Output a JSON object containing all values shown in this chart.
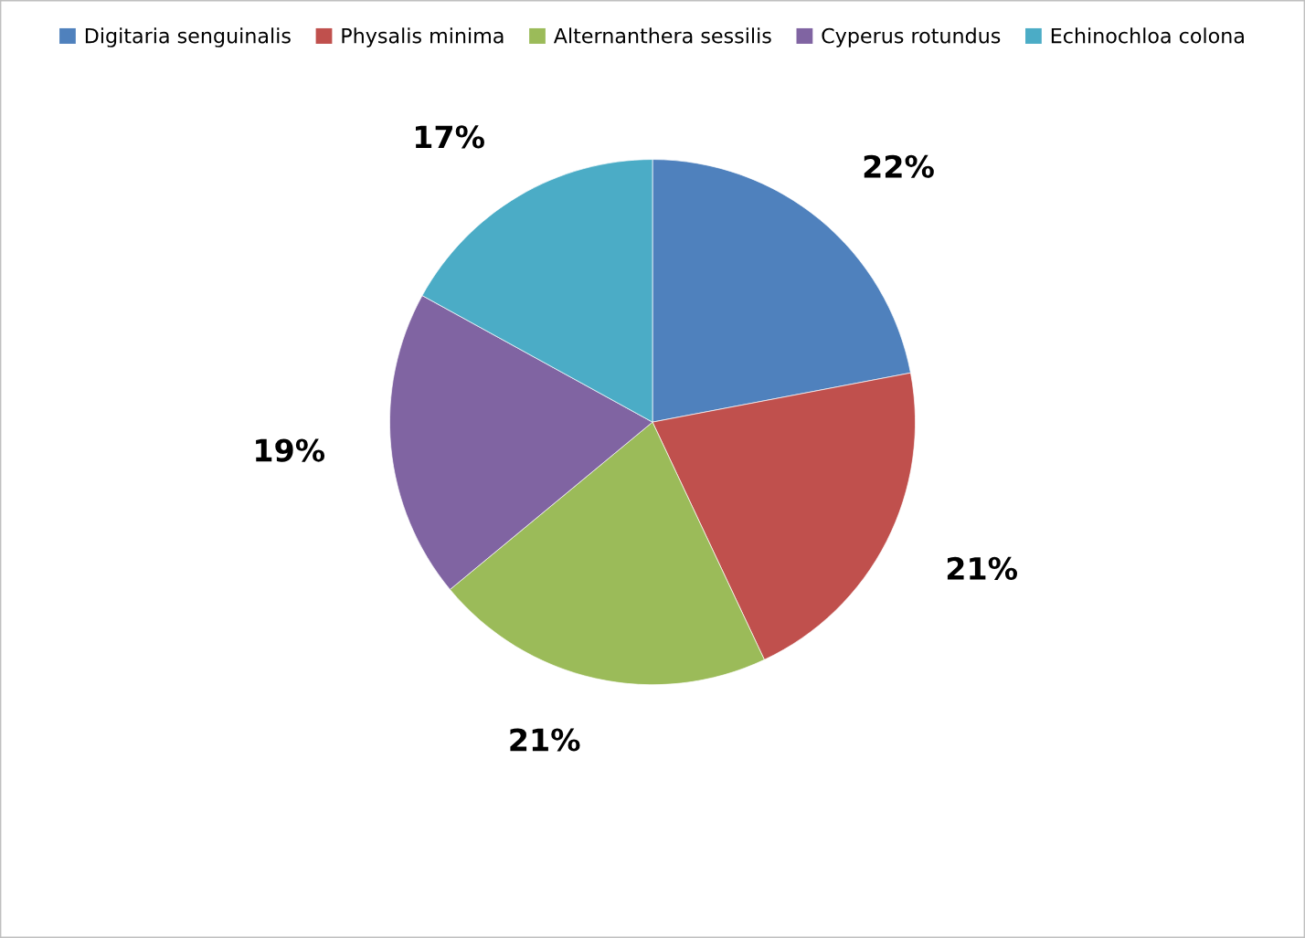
{
  "chart_data": {
    "type": "pie",
    "categories": [
      "Digitaria senguinalis",
      "Physalis minima",
      "Alternanthera sessilis",
      "Cyperus rotundus",
      "Echinochloa colona"
    ],
    "values": [
      22,
      21,
      21,
      19,
      17
    ],
    "colors": [
      "#4f81bd",
      "#c0504d",
      "#9bbb59",
      "#8064a2",
      "#4bacc6"
    ],
    "value_labels": [
      "22%",
      "21%",
      "21%",
      "19%",
      "17%"
    ],
    "legend": "top"
  }
}
